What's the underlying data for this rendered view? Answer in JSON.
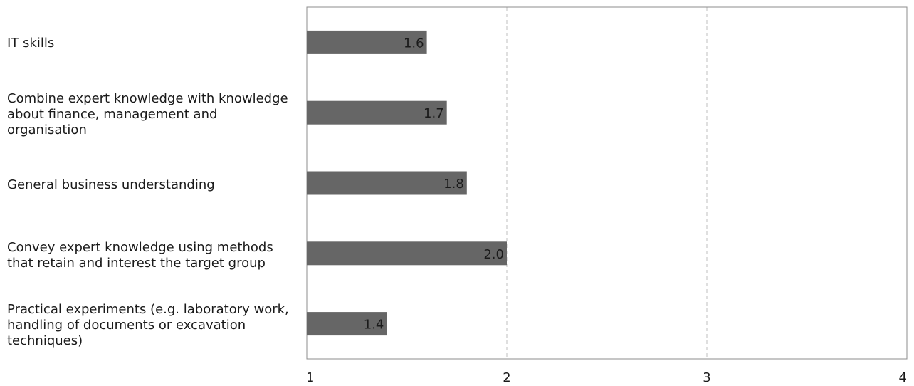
{
  "chart_data": {
    "type": "bar",
    "orientation": "horizontal",
    "categories": [
      "IT skills",
      "Combine expert knowledge with knowledge about finance, management and organisation",
      "General business understanding",
      "Convey expert knowledge using methods that retain and interest the target group",
      "Practical experiments (e.g. laboratory work, handling of documents or excavation techniques)"
    ],
    "values": [
      1.6,
      1.7,
      1.8,
      2.0,
      1.4
    ],
    "data_labels": [
      "1.6",
      "1.7",
      "1.8",
      "2.0",
      "1.4"
    ],
    "xlim": [
      1,
      4
    ],
    "xticks": [
      "1",
      "2",
      "3",
      "4"
    ],
    "grid": "vertical dashed",
    "bar_color": "#666666",
    "grid_color": "#bfbfbf"
  }
}
